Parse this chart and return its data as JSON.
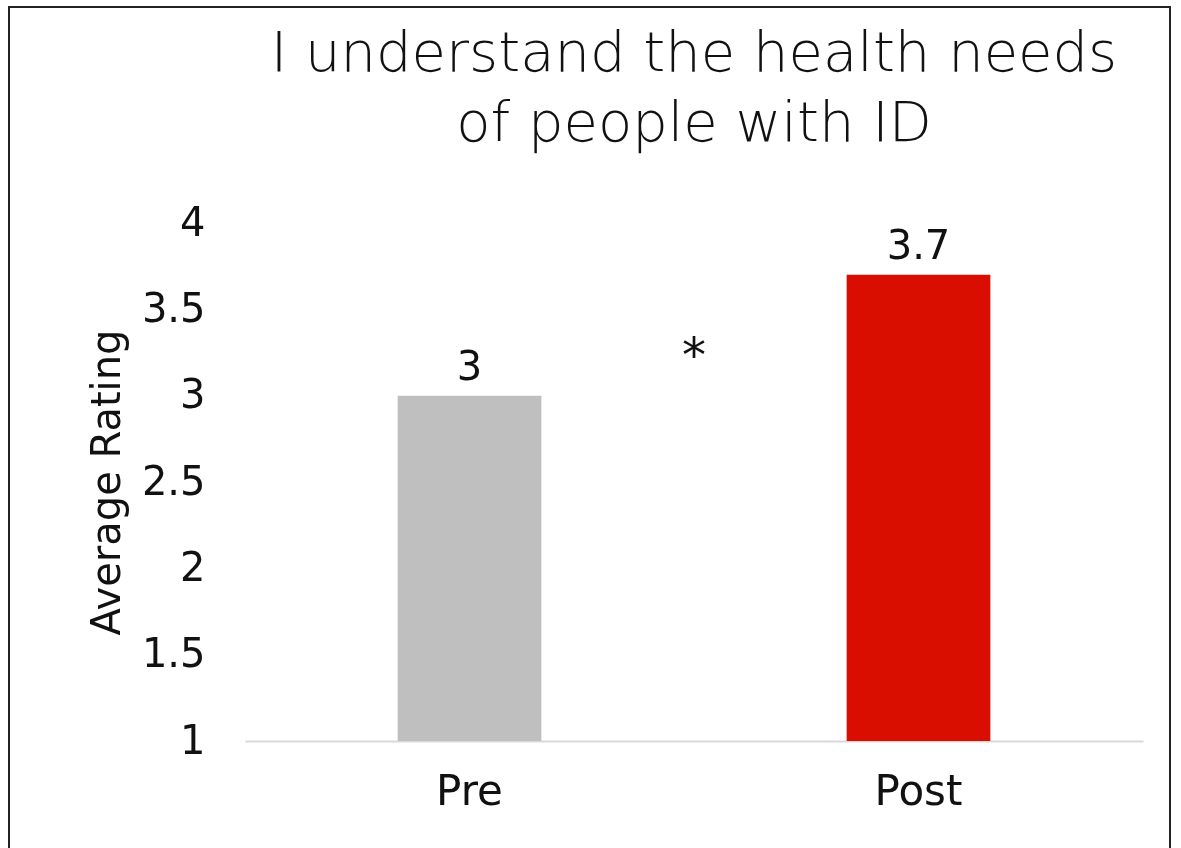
{
  "chart_data": {
    "type": "bar",
    "title": "I understand the health needs of people with ID",
    "ylabel": "Average Rating",
    "categories": [
      "Pre",
      "Post"
    ],
    "values": [
      3,
      3.7
    ],
    "colors": [
      "#bfbfbf",
      "#d90e00"
    ],
    "ylim": [
      1,
      4
    ],
    "yticks": [
      1,
      1.5,
      2,
      2.5,
      3,
      3.5,
      4
    ],
    "data_labels": true,
    "grid": false,
    "legend": false,
    "annotations": [
      "*"
    ]
  }
}
